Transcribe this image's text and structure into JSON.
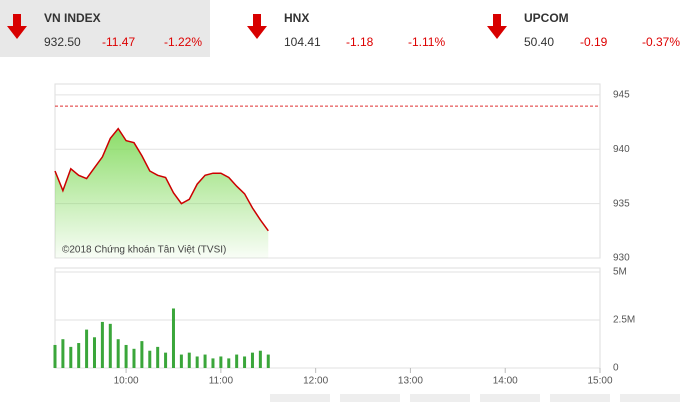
{
  "indices": [
    {
      "name": "VN INDEX",
      "value": "932.50",
      "change": "-11.47",
      "percent": "-1.22%"
    },
    {
      "name": "HNX",
      "value": "104.41",
      "change": "-1.18",
      "percent": "-1.11%"
    },
    {
      "name": "UPCOM",
      "value": "50.40",
      "change": "-0.19",
      "percent": "-0.37%"
    }
  ],
  "chart_data": [
    {
      "type": "area",
      "annotation": "©2018 Chứng khoán Tân Việt (TVSI)",
      "color": "#cc0000",
      "fill": "#7ed957",
      "reference": 943.97,
      "reference_color": "#e03030",
      "x": [
        "09:15",
        "09:20",
        "09:25",
        "09:30",
        "09:35",
        "09:40",
        "09:45",
        "09:50",
        "09:55",
        "10:00",
        "10:05",
        "10:10",
        "10:15",
        "10:20",
        "10:25",
        "10:30",
        "10:35",
        "10:40",
        "10:45",
        "10:50",
        "10:55",
        "11:00",
        "11:05",
        "11:10",
        "11:15",
        "11:20",
        "11:25",
        "11:30"
      ],
      "values": [
        938.0,
        936.2,
        938.2,
        937.6,
        937.3,
        938.3,
        939.3,
        941.0,
        941.9,
        940.8,
        940.6,
        939.4,
        938.0,
        937.6,
        937.4,
        936.0,
        935.0,
        935.4,
        936.8,
        937.6,
        937.8,
        937.8,
        937.4,
        936.6,
        935.9,
        934.6,
        933.5,
        932.5
      ],
      "xlim": [
        "09:15",
        "15:00"
      ],
      "ylim": [
        930,
        946
      ],
      "yticks": [
        930,
        935,
        940,
        945
      ],
      "grid": true
    },
    {
      "type": "bar",
      "color": "#3aa63a",
      "x": [
        "09:15",
        "09:20",
        "09:25",
        "09:30",
        "09:35",
        "09:40",
        "09:45",
        "09:50",
        "09:55",
        "10:00",
        "10:05",
        "10:10",
        "10:15",
        "10:20",
        "10:25",
        "10:30",
        "10:35",
        "10:40",
        "10:45",
        "10:50",
        "10:55",
        "11:00",
        "11:05",
        "11:10",
        "11:15",
        "11:20",
        "11:25",
        "11:30"
      ],
      "values": [
        1200000,
        1500000,
        1100000,
        1300000,
        2000000,
        1600000,
        2400000,
        2300000,
        1500000,
        1200000,
        1000000,
        1400000,
        900000,
        1100000,
        800000,
        3100000,
        700000,
        800000,
        600000,
        700000,
        500000,
        600000,
        500000,
        700000,
        600000,
        800000,
        900000,
        700000
      ],
      "xlim": [
        "09:15",
        "15:00"
      ],
      "xticks": [
        "10:00",
        "11:00",
        "12:00",
        "13:00",
        "14:00",
        "15:00"
      ],
      "ylim": [
        0,
        5000000
      ],
      "yticks": [
        0,
        {
          "value": 2500000,
          "label": "2.5M"
        },
        {
          "value": 5000000,
          "label": "5M"
        }
      ],
      "grid": true
    }
  ]
}
